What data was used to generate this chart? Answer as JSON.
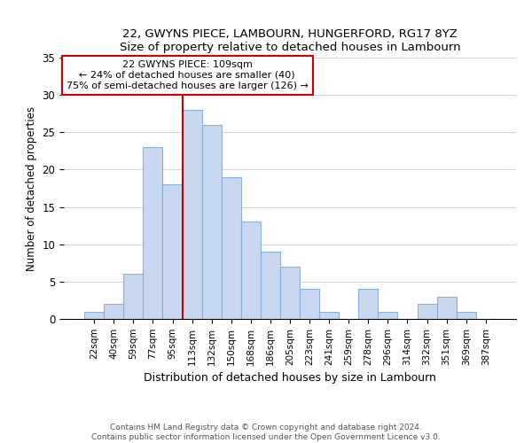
{
  "title": "22, GWYNS PIECE, LAMBOURN, HUNGERFORD, RG17 8YZ",
  "subtitle": "Size of property relative to detached houses in Lambourn",
  "xlabel": "Distribution of detached houses by size in Lambourn",
  "ylabel": "Number of detached properties",
  "bin_labels": [
    "22sqm",
    "40sqm",
    "59sqm",
    "77sqm",
    "95sqm",
    "113sqm",
    "132sqm",
    "150sqm",
    "168sqm",
    "186sqm",
    "205sqm",
    "223sqm",
    "241sqm",
    "259sqm",
    "278sqm",
    "296sqm",
    "314sqm",
    "332sqm",
    "351sqm",
    "369sqm",
    "387sqm"
  ],
  "bar_heights": [
    1,
    2,
    6,
    23,
    18,
    28,
    26,
    19,
    13,
    9,
    7,
    4,
    1,
    0,
    4,
    1,
    0,
    2,
    3,
    1,
    0
  ],
  "bar_color": "#c8d8f0",
  "bar_edge_color": "#8ab0d8",
  "vline_x_idx": 5,
  "vline_color": "#cc0000",
  "annotation_title": "22 GWYNS PIECE: 109sqm",
  "annotation_line1": "← 24% of detached houses are smaller (40)",
  "annotation_line2": "75% of semi-detached houses are larger (126) →",
  "annotation_box_color": "#ffffff",
  "annotation_box_edge": "#cc0000",
  "ylim": [
    0,
    35
  ],
  "yticks": [
    0,
    5,
    10,
    15,
    20,
    25,
    30,
    35
  ],
  "footer1": "Contains HM Land Registry data © Crown copyright and database right 2024.",
  "footer2": "Contains public sector information licensed under the Open Government Licence v3.0."
}
